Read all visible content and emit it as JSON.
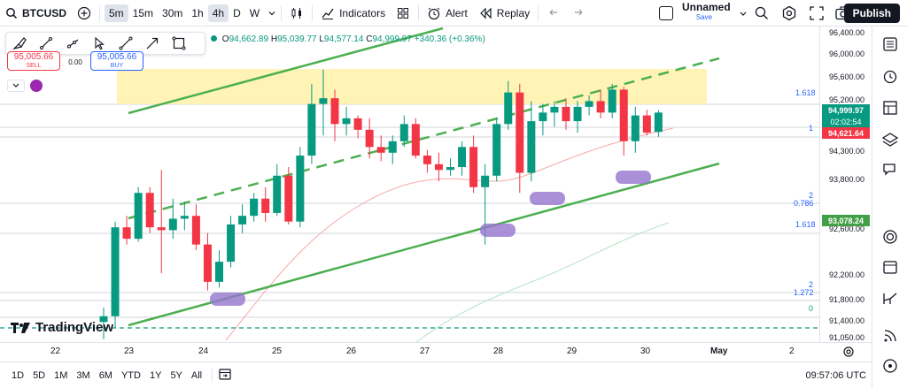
{
  "header": {
    "symbol": "BTCUSD",
    "timeframes": [
      "5m",
      "15m",
      "30m",
      "1h",
      "4h",
      "D",
      "W"
    ],
    "active_timeframe": "4h",
    "indicators_label": "Indicators",
    "alert_label": "Alert",
    "replay_label": "Replay",
    "layout_name": "Unnamed",
    "save_label": "Save",
    "publish_label": "Publish"
  },
  "ohlc": {
    "o_key": "O",
    "o": "94,662.89",
    "h_key": "H",
    "h": "95,039.77",
    "l_key": "L",
    "l": "94,577.14",
    "c_key": "C",
    "c": "94,999.97",
    "change": "+340.36 (+0.36%)"
  },
  "trade": {
    "sell_price": "95,005.66",
    "sell_label": "SELL",
    "spread": "0.00",
    "buy_price": "95,005.66",
    "buy_label": "BUY"
  },
  "price_axis": {
    "labels": [
      "96,400.00",
      "96,000.00",
      "95,600.00",
      "95,200.00",
      "94,300.00",
      "93,800.00",
      "92,600.00",
      "92,200.00",
      "91,800.00",
      "91,400.00",
      "91,050.00"
    ],
    "tag_close": "94,999.97",
    "tag_countdown": "02:02:54",
    "tag_red": "94,621.64",
    "tag_green": "93,078.24",
    "colors": {
      "green": "#089981",
      "red": "#f23645",
      "dark": "#131722"
    }
  },
  "fib": {
    "l1618_top": "1.618",
    "l1": "1",
    "l2_a": "2",
    "l0786": "0.786",
    "l1618_b": "1.618",
    "l2_b": "2",
    "l1272": "1.272",
    "l0": "0"
  },
  "time_axis": [
    "22",
    "23",
    "24",
    "25",
    "26",
    "27",
    "28",
    "29",
    "30",
    "May",
    "2"
  ],
  "bottom": {
    "ranges": [
      "1D",
      "5D",
      "1M",
      "3M",
      "6M",
      "YTD",
      "1Y",
      "5Y",
      "All"
    ],
    "clock": "09:57:06 UTC"
  },
  "brand": "TradingView",
  "chart_data": {
    "type": "candlestick",
    "ylim": [
      91000,
      96500
    ],
    "candles": [
      {
        "o": 91350,
        "h": 91600,
        "l": 91050,
        "c": 91450
      },
      {
        "o": 91450,
        "h": 93100,
        "l": 91250,
        "c": 93000
      },
      {
        "o": 93000,
        "h": 93200,
        "l": 92700,
        "c": 92800
      },
      {
        "o": 92800,
        "h": 93700,
        "l": 92750,
        "c": 93600
      },
      {
        "o": 93600,
        "h": 93700,
        "l": 92900,
        "c": 93000
      },
      {
        "o": 93000,
        "h": 94000,
        "l": 92200,
        "c": 92950
      },
      {
        "o": 92950,
        "h": 93500,
        "l": 92800,
        "c": 93150
      },
      {
        "o": 93150,
        "h": 93450,
        "l": 92950,
        "c": 93200
      },
      {
        "o": 93200,
        "h": 93400,
        "l": 92600,
        "c": 92700
      },
      {
        "o": 92700,
        "h": 92900,
        "l": 91900,
        "c": 92050
      },
      {
        "o": 92050,
        "h": 92600,
        "l": 91950,
        "c": 92400
      },
      {
        "o": 92400,
        "h": 93200,
        "l": 92300,
        "c": 93050
      },
      {
        "o": 93050,
        "h": 93400,
        "l": 92900,
        "c": 93200
      },
      {
        "o": 93200,
        "h": 93600,
        "l": 93100,
        "c": 93500
      },
      {
        "o": 93500,
        "h": 93700,
        "l": 93100,
        "c": 93250
      },
      {
        "o": 93250,
        "h": 94100,
        "l": 93200,
        "c": 93900
      },
      {
        "o": 93900,
        "h": 94050,
        "l": 93050,
        "c": 93100
      },
      {
        "o": 93100,
        "h": 94400,
        "l": 93000,
        "c": 94250
      },
      {
        "o": 94250,
        "h": 95500,
        "l": 94100,
        "c": 95150
      },
      {
        "o": 95150,
        "h": 95750,
        "l": 94600,
        "c": 95250
      },
      {
        "o": 95250,
        "h": 95400,
        "l": 94500,
        "c": 94800
      },
      {
        "o": 94800,
        "h": 95100,
        "l": 94600,
        "c": 94900
      },
      {
        "o": 94900,
        "h": 94950,
        "l": 94550,
        "c": 94700
      },
      {
        "o": 94700,
        "h": 94900,
        "l": 94200,
        "c": 94400
      },
      {
        "o": 94400,
        "h": 94600,
        "l": 94150,
        "c": 94300
      },
      {
        "o": 94300,
        "h": 94600,
        "l": 94100,
        "c": 94500
      },
      {
        "o": 94500,
        "h": 94950,
        "l": 94400,
        "c": 94800
      },
      {
        "o": 94800,
        "h": 94900,
        "l": 94200,
        "c": 94250
      },
      {
        "o": 94250,
        "h": 94350,
        "l": 93950,
        "c": 94100
      },
      {
        "o": 94100,
        "h": 94300,
        "l": 93800,
        "c": 94000
      },
      {
        "o": 94000,
        "h": 94200,
        "l": 93900,
        "c": 94050
      },
      {
        "o": 94050,
        "h": 94500,
        "l": 93900,
        "c": 94400
      },
      {
        "o": 94400,
        "h": 94600,
        "l": 93600,
        "c": 93700
      },
      {
        "o": 93700,
        "h": 94100,
        "l": 92700,
        "c": 93900
      },
      {
        "o": 93900,
        "h": 94900,
        "l": 93800,
        "c": 94800
      },
      {
        "o": 94800,
        "h": 95550,
        "l": 94700,
        "c": 95350
      },
      {
        "o": 95350,
        "h": 95500,
        "l": 93600,
        "c": 93950
      },
      {
        "o": 93950,
        "h": 95200,
        "l": 93800,
        "c": 94850
      },
      {
        "o": 94850,
        "h": 95150,
        "l": 94600,
        "c": 95000
      },
      {
        "o": 95000,
        "h": 95200,
        "l": 94750,
        "c": 95100
      },
      {
        "o": 95100,
        "h": 95250,
        "l": 94700,
        "c": 94850
      },
      {
        "o": 94850,
        "h": 95200,
        "l": 94650,
        "c": 95100
      },
      {
        "o": 95100,
        "h": 95300,
        "l": 94950,
        "c": 95200
      },
      {
        "o": 95200,
        "h": 95400,
        "l": 94900,
        "c": 95000
      },
      {
        "o": 95000,
        "h": 95500,
        "l": 94900,
        "c": 95400
      },
      {
        "o": 95400,
        "h": 95450,
        "l": 94250,
        "c": 94500
      },
      {
        "o": 94500,
        "h": 95100,
        "l": 94300,
        "c": 94950
      },
      {
        "o": 94950,
        "h": 95050,
        "l": 94600,
        "c": 94650
      },
      {
        "o": 94662,
        "h": 95040,
        "l": 94577,
        "c": 95000
      }
    ]
  }
}
